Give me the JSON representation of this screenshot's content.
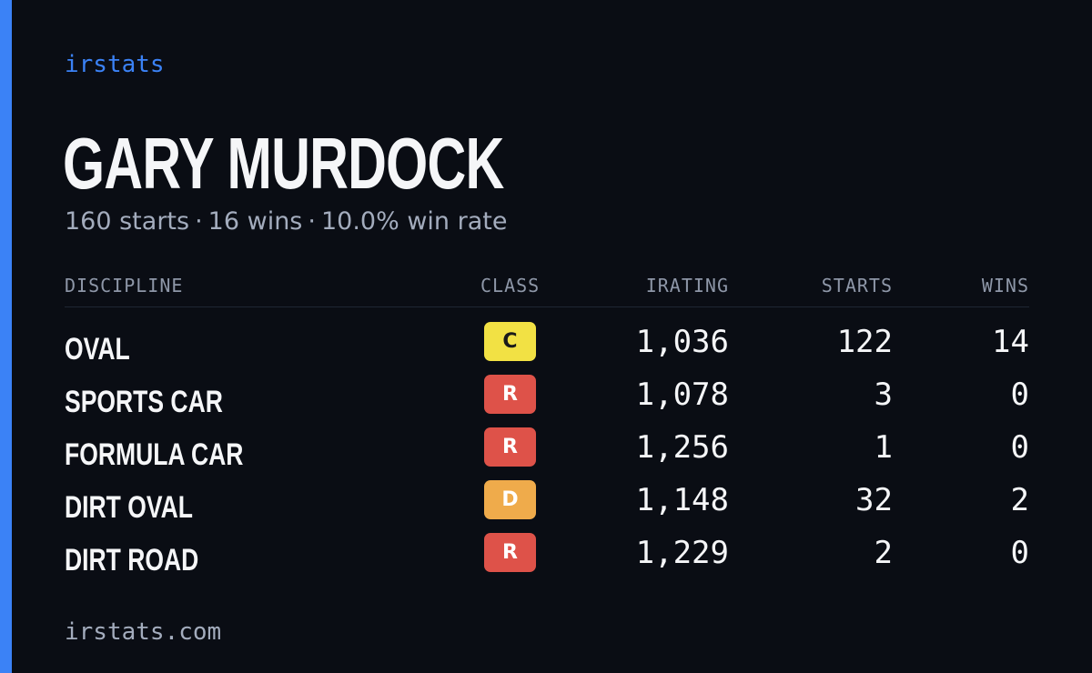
{
  "brand": "irstats",
  "driver": {
    "name": "GARY MURDOCK",
    "starts_text": "160 starts",
    "wins_text": "16 wins",
    "win_rate_text": "10.0% win rate",
    "separator": "·"
  },
  "table": {
    "headers": {
      "discipline": "DISCIPLINE",
      "class": "CLASS",
      "irating": "IRATING",
      "starts": "STARTS",
      "wins": "WINS"
    },
    "rows": [
      {
        "discipline": "OVAL",
        "class": "C",
        "class_color": "#f2e144",
        "class_text_color": "#1a1a1a",
        "irating": "1,036",
        "starts": "122",
        "wins": "14"
      },
      {
        "discipline": "SPORTS CAR",
        "class": "R",
        "class_color": "#de5249",
        "class_text_color": "#ffffff",
        "irating": "1,078",
        "starts": "3",
        "wins": "0"
      },
      {
        "discipline": "FORMULA CAR",
        "class": "R",
        "class_color": "#de5249",
        "class_text_color": "#ffffff",
        "irating": "1,256",
        "starts": "1",
        "wins": "0"
      },
      {
        "discipline": "DIRT OVAL",
        "class": "D",
        "class_color": "#efab4b",
        "class_text_color": "#ffffff",
        "irating": "1,148",
        "starts": "32",
        "wins": "2"
      },
      {
        "discipline": "DIRT ROAD",
        "class": "R",
        "class_color": "#de5249",
        "class_text_color": "#ffffff",
        "irating": "1,229",
        "starts": "2",
        "wins": "0"
      }
    ]
  },
  "footer": "irstats.com",
  "colors": {
    "accent": "#3b82f6",
    "background": "#0a0d14"
  }
}
